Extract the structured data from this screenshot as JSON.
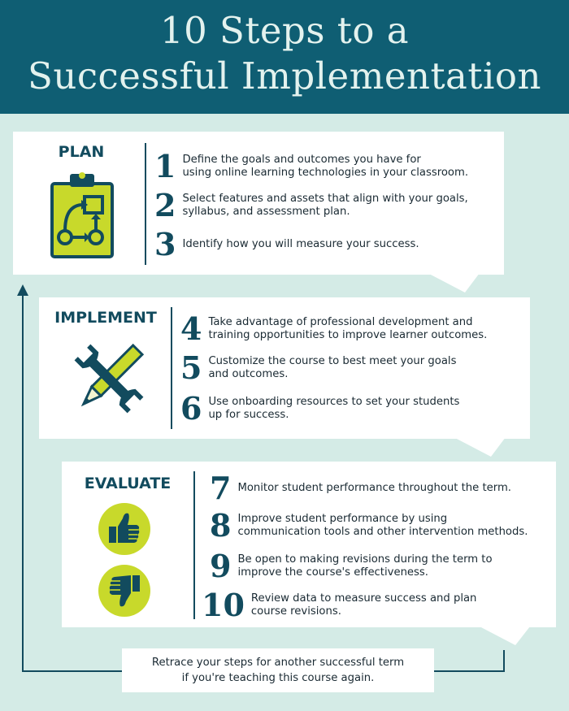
{
  "header": {
    "title_line1": "10 Steps to a",
    "title_line2": "Successful Implementation"
  },
  "sections": {
    "plan": {
      "label": "PLAN",
      "steps": [
        {
          "num": "1",
          "text": "Define the goals and outcomes you have for\nusing online learning technologies in your classroom."
        },
        {
          "num": "2",
          "text": "Select features and assets that align with your goals,\nsyllabus, and assessment plan."
        },
        {
          "num": "3",
          "text": "Identify how you will measure your success."
        }
      ]
    },
    "implement": {
      "label": "IMPLEMENT",
      "steps": [
        {
          "num": "4",
          "text": "Take advantage of professional development and\ntraining opportunities to improve learner outcomes."
        },
        {
          "num": "5",
          "text": "Customize the course to best meet your goals\nand outcomes."
        },
        {
          "num": "6",
          "text": "Use onboarding resources to set your students\nup for success."
        }
      ]
    },
    "evaluate": {
      "label": "EVALUATE",
      "steps": [
        {
          "num": "7",
          "text": "Monitor student performance throughout the term."
        },
        {
          "num": "8",
          "text": "Improve student performance by using\ncommunication tools and other intervention methods."
        },
        {
          "num": "9",
          "text": "Be open to making revisions during the term to\nimprove the course's effectiveness."
        },
        {
          "num": "10",
          "text": "Review data to measure success and plan\ncourse revisions."
        }
      ]
    }
  },
  "footer": {
    "retrace_text": "Retrace your steps for another successful term\nif you're teaching this course again."
  },
  "icons": {
    "plan": "clipboard-flowchart-icon",
    "implement": "wrench-pencil-icon",
    "evaluate_up": "thumbs-up-icon",
    "evaluate_down": "thumbs-down-icon"
  },
  "colors": {
    "header_bg": "#0f5e73",
    "background": "#d4ebe6",
    "accent_dark": "#124b5e",
    "accent_lime": "#c8d92b"
  }
}
